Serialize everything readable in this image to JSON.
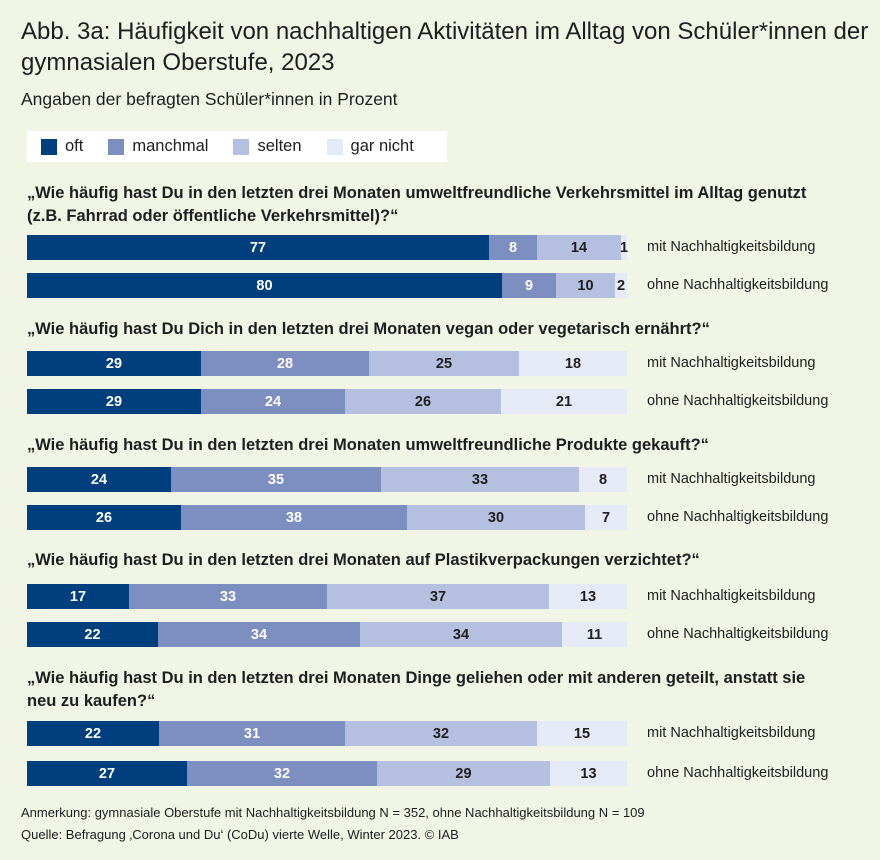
{
  "title": "Abb. 3a: Häufigkeit von nachhaltigen Aktivitäten im Alltag von Schüler*innen der gymnasialen Oberstufe, 2023",
  "subtitle": "Angaben der befragten Schüler*innen in Prozent",
  "colors": {
    "oft": "#003f7d",
    "manchmal": "#7d8fc0",
    "selten": "#b5bfe0",
    "gar_nicht": "#e6e9f6",
    "background": "#f1f5e6"
  },
  "footnotes": {
    "note": "Anmerkung: gymnasiale Oberstufe mit Nachhaltigkeitsbildung N = 352, ohne Nachhaltigkeitsbildung N = 109",
    "source": "Quelle: Befragung ‚Corona und Du‘ (CoDu)  vierte Welle, Winter 2023.  © IAB"
  },
  "chart_data": {
    "type": "bar",
    "orientation": "horizontal",
    "stacked": true,
    "unit": "Prozent",
    "legend": [
      "oft",
      "manchmal",
      "selten",
      "gar nicht"
    ],
    "groups": [
      "mit Nachhaltigkeitsbildung",
      "ohne Nachhaltigkeitsbildung"
    ],
    "questions": [
      {
        "text": "„Wie häufig hast Du in den letzten drei Monaten umweltfreundliche Verkehrsmittel im Alltag genutzt (z.B. Fahrrad oder öffentliche Verkehrsmittel)?“",
        "rows": [
          {
            "label": "mit Nachhaltigkeitsbildung",
            "values": [
              77,
              8,
              14,
              1
            ]
          },
          {
            "label": "ohne Nachhaltigkeitsbildung",
            "values": [
              80,
              9,
              10,
              2
            ]
          }
        ]
      },
      {
        "text": "„Wie häufig hast Du Dich in den letzten drei Monaten vegan oder vegetarisch ernährt?“",
        "rows": [
          {
            "label": "mit Nachhaltigkeitsbildung",
            "values": [
              29,
              28,
              25,
              18
            ]
          },
          {
            "label": "ohne Nachhaltigkeitsbildung",
            "values": [
              29,
              24,
              26,
              21
            ]
          }
        ]
      },
      {
        "text": "„Wie häufig hast Du in den letzten drei Monaten umweltfreundliche Produkte gekauft?“",
        "rows": [
          {
            "label": "mit Nachhaltigkeitsbildung",
            "values": [
              24,
              35,
              33,
              8
            ]
          },
          {
            "label": "ohne Nachhaltigkeitsbildung",
            "values": [
              26,
              38,
              30,
              7
            ]
          }
        ]
      },
      {
        "text": "„Wie häufig hast Du in den letzten drei Monaten auf Plastikverpackungen verzichtet?“",
        "rows": [
          {
            "label": "mit Nachhaltigkeitsbildung",
            "values": [
              17,
              33,
              37,
              13
            ]
          },
          {
            "label": "ohne Nachhaltigkeitsbildung",
            "values": [
              22,
              34,
              34,
              11
            ]
          }
        ]
      },
      {
        "text": "„Wie häufig hast Du in den letzten drei Monaten Dinge geliehen oder mit anderen geteilt, anstatt sie neu zu kaufen?“",
        "rows": [
          {
            "label": "mit Nachhaltigkeitsbildung",
            "values": [
              22,
              31,
              32,
              15
            ]
          },
          {
            "label": "ohne Nachhaltigkeitsbildung",
            "values": [
              27,
              32,
              29,
              13
            ]
          }
        ]
      }
    ]
  }
}
